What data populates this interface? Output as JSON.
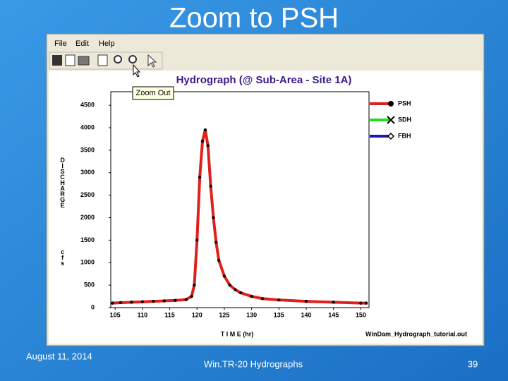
{
  "slide_title": "Zoom to PSH",
  "menu": [
    "File",
    "Edit",
    "Help"
  ],
  "tooltip": "Zoom Out",
  "chart_data": {
    "type": "line",
    "title": "Hydrograph (@ Sub-Area - Site 1A)",
    "x_label": "T I M E (hr)",
    "y_label": "DISCHARGE",
    "y_unit": "cfs",
    "file_name": "WinDam_Hydrograph_tutorial.out",
    "x": [
      104.5,
      106,
      108,
      110,
      112,
      114,
      116,
      118,
      119,
      119.5,
      120,
      120.5,
      121,
      121.5,
      122,
      122.5,
      123,
      123.5,
      124,
      125,
      126,
      127,
      128,
      130,
      132,
      135,
      140,
      145,
      150,
      151
    ],
    "series": [
      {
        "name": "PSH",
        "color": "#e0201c",
        "values": [
          100,
          110,
          120,
          130,
          140,
          150,
          160,
          180,
          250,
          500,
          1500,
          2900,
          3700,
          3950,
          3600,
          2700,
          2000,
          1450,
          1050,
          700,
          500,
          400,
          330,
          250,
          200,
          170,
          140,
          120,
          100,
          100
        ]
      }
    ],
    "legend": [
      {
        "name": "PSH",
        "color": "#e0201c"
      },
      {
        "name": "SDH",
        "color": "#22dd22"
      },
      {
        "name": "FBH",
        "color": "#1818c0"
      }
    ],
    "xlim": [
      104.2,
      151.5
    ],
    "xticks": [
      105,
      110,
      115,
      120,
      125,
      130,
      135,
      140,
      145,
      150
    ],
    "ylim": [
      0,
      4800
    ],
    "yticks": [
      0,
      500,
      1000,
      1500,
      2000,
      2500,
      3000,
      3500,
      4000,
      4500
    ]
  },
  "footer": {
    "date": "August 11, 2014",
    "center": "Win.TR-20 Hydrographs",
    "page": "39"
  }
}
